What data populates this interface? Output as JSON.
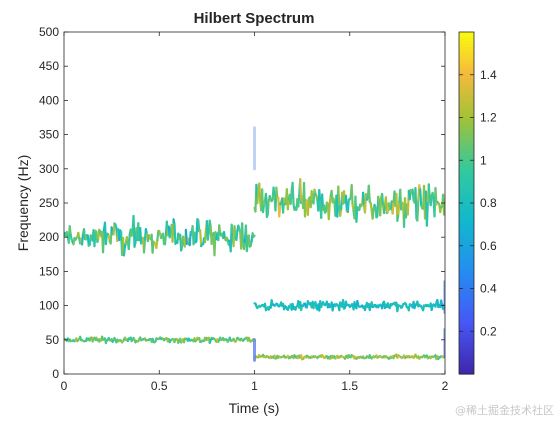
{
  "watermark": "@稀土掘金技术社区",
  "chart_data": {
    "type": "scatter",
    "title": "Hilbert Spectrum",
    "xlabel": "Time (s)",
    "ylabel": "Frequency (Hz)",
    "xlim": [
      0,
      2
    ],
    "ylim": [
      0,
      500
    ],
    "x_ticks": [
      0,
      0.5,
      1,
      1.5,
      2
    ],
    "x_tick_labels": [
      "0",
      "0.5",
      "1",
      "1.5",
      "2"
    ],
    "y_ticks": [
      0,
      50,
      100,
      150,
      200,
      250,
      300,
      350,
      400,
      450,
      500
    ],
    "y_tick_labels": [
      "0",
      "50",
      "100",
      "150",
      "200",
      "250",
      "300",
      "350",
      "400",
      "450",
      "500"
    ],
    "grid": false,
    "legend": "none",
    "colormap": "parula",
    "colorbar": {
      "position": "right",
      "range": [
        0,
        1.6
      ],
      "ticks": [
        0.2,
        0.4,
        0.6,
        0.8,
        1,
        1.2,
        1.4
      ],
      "tick_labels": [
        "0.2",
        "0.4",
        "0.6",
        "0.8",
        "1",
        "1.2",
        "1.4"
      ]
    },
    "series": [
      {
        "t_start": 0,
        "t_end": 1,
        "freq_mean": 200,
        "freq_spread": 25,
        "amp_mean": 1.0,
        "amp_spread": 0.25
      },
      {
        "t_start": 0,
        "t_end": 1,
        "freq_mean": 50,
        "freq_spread": 4,
        "amp_mean": 1.05,
        "amp_spread": 0.2
      },
      {
        "t_start": 1,
        "t_end": 2,
        "freq_mean": 250,
        "freq_spread": 30,
        "amp_mean": 1.05,
        "amp_spread": 0.25
      },
      {
        "t_start": 1,
        "t_end": 2,
        "freq_mean": 100,
        "freq_spread": 7,
        "amp_mean": 0.8,
        "amp_spread": 0.12
      },
      {
        "t_start": 1,
        "t_end": 2,
        "freq_mean": 25,
        "freq_spread": 3,
        "amp_mean": 1.15,
        "amp_spread": 0.2
      }
    ],
    "transients": [
      {
        "t": 1.0,
        "freq_from": 300,
        "freq_to": 360
      },
      {
        "t": 1.0,
        "freq_from": 20,
        "freq_to": 50
      },
      {
        "t": 2.0,
        "freq_from": 90,
        "freq_to": 135
      },
      {
        "t": 2.0,
        "freq_from": 25,
        "freq_to": 65
      }
    ]
  }
}
